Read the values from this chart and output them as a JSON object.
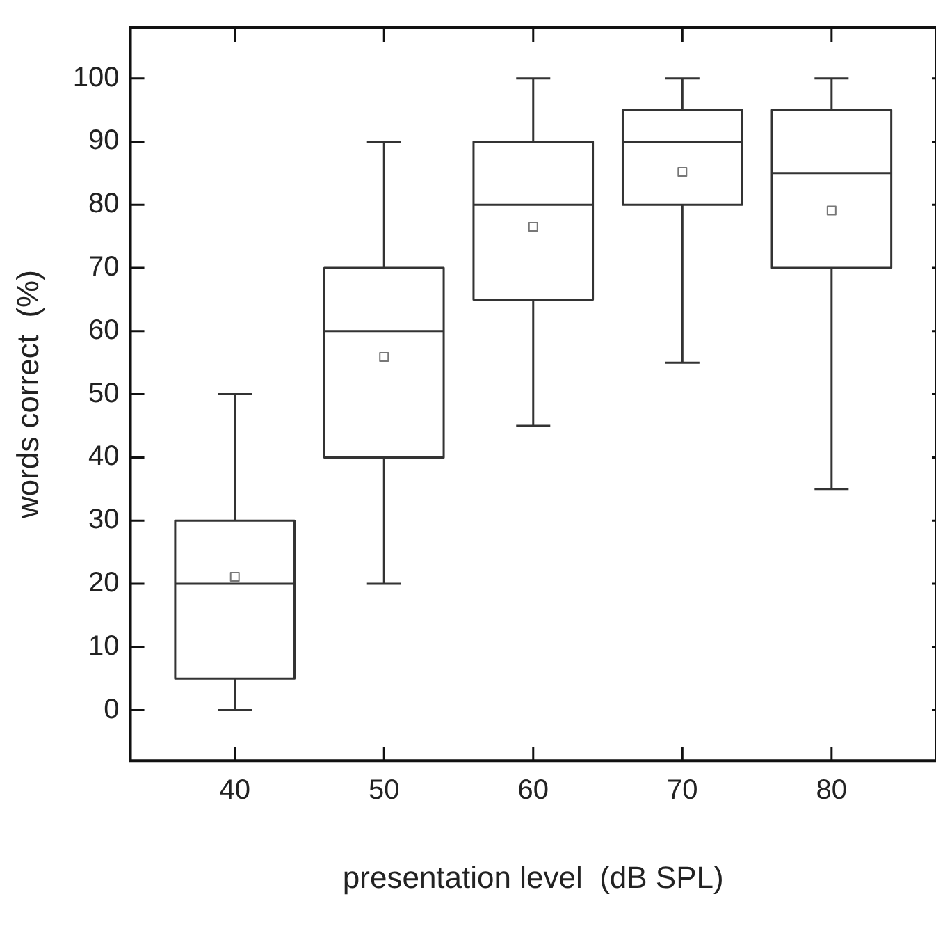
{
  "chart_data": {
    "type": "box",
    "xlabel": "presentation level  (dB SPL)",
    "ylabel": "words correct  (%)",
    "x": [
      40,
      50,
      60,
      70,
      80
    ],
    "boxes": [
      {
        "low": 0,
        "q1": 5,
        "median": 20,
        "q3": 30,
        "high": 50,
        "mean": 21.1
      },
      {
        "low": 20,
        "q1": 40,
        "median": 60,
        "q3": 70,
        "high": 90,
        "mean": 55.9
      },
      {
        "low": 45,
        "q1": 65,
        "median": 80,
        "q3": 90,
        "high": 100,
        "mean": 76.5
      },
      {
        "low": 55,
        "q1": 80,
        "median": 90,
        "q3": 95,
        "high": 100,
        "mean": 85.2
      },
      {
        "low": 35,
        "q1": 70,
        "median": 85,
        "q3": 95,
        "high": 100,
        "mean": 79.1
      }
    ],
    "color": "#333333",
    "marker": "square",
    "xlim": [
      33,
      87
    ],
    "xticks": [
      40,
      50,
      60,
      70,
      80
    ],
    "ylim": [
      -8,
      108
    ],
    "yticks": [
      0,
      10,
      20,
      30,
      40,
      50,
      60,
      70,
      80,
      90,
      100
    ]
  }
}
